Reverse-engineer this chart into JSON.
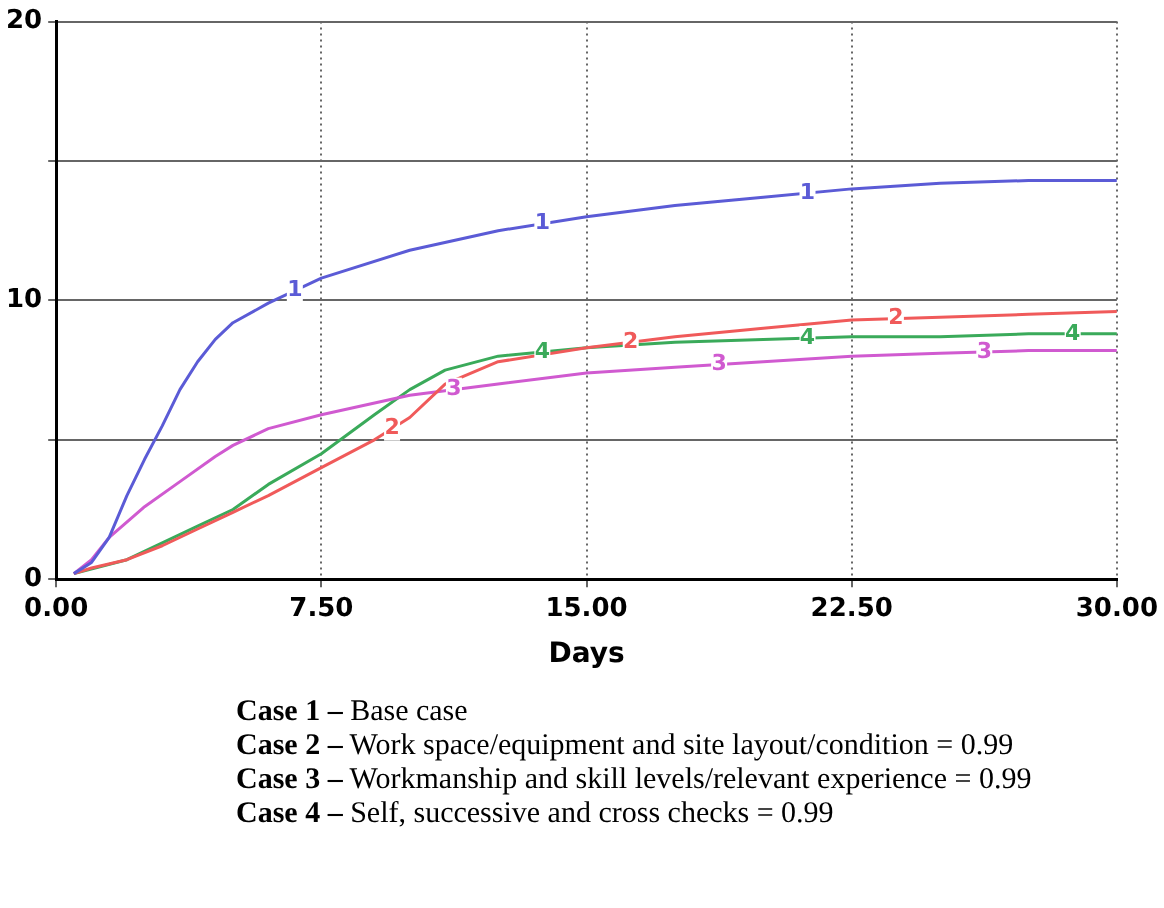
{
  "chart_data": {
    "type": "line",
    "xlabel": "Days",
    "xlim": [
      0,
      30
    ],
    "xticks": [
      {
        "value": 0,
        "label": "0.00"
      },
      {
        "value": 7.5,
        "label": "7.50"
      },
      {
        "value": 15,
        "label": "15.00"
      },
      {
        "value": 22.5,
        "label": "22.50"
      },
      {
        "value": 30,
        "label": "30.00"
      }
    ],
    "ylim": [
      0,
      20
    ],
    "yticks": [
      0,
      {
        "value": 5,
        "label": null
      },
      10,
      {
        "value": 15,
        "label": null
      },
      20
    ],
    "grid": true,
    "legend": false,
    "marker": "none",
    "line_style": "solid",
    "series": [
      {
        "name": "1",
        "color": "#5b5bd6",
        "x": [
          0.5,
          1,
          1.5,
          2,
          2.5,
          3,
          3.5,
          4,
          4.5,
          5,
          6,
          7.5,
          10,
          12.5,
          15,
          17.5,
          20,
          22.5,
          25,
          27.5,
          30
        ],
        "values": [
          0.2,
          0.6,
          1.5,
          3,
          4.3,
          5.5,
          6.8,
          7.8,
          8.6,
          9.2,
          9.9,
          10.8,
          11.8,
          12.5,
          13,
          13.4,
          13.7,
          14,
          14.2,
          14.3,
          14.3
        ]
      },
      {
        "name": "2",
        "color": "#f05a5a",
        "x": [
          0.5,
          1,
          2,
          3,
          4,
          5,
          6,
          7.5,
          9,
          10,
          11,
          12.5,
          15,
          17.5,
          20,
          22.5,
          25,
          27.5,
          30
        ],
        "values": [
          0.2,
          0.4,
          0.7,
          1.2,
          1.8,
          2.4,
          3,
          4,
          5,
          5.8,
          7,
          7.8,
          8.3,
          8.7,
          9,
          9.3,
          9.4,
          9.5,
          9.6
        ]
      },
      {
        "name": "3",
        "color": "#d05ad0",
        "x": [
          0.5,
          1,
          1.5,
          2.5,
          3.5,
          4.5,
          5,
          6,
          7.5,
          10,
          12.5,
          15,
          17.5,
          20,
          22.5,
          25,
          27.5,
          30
        ],
        "values": [
          0.2,
          0.7,
          1.5,
          2.6,
          3.5,
          4.4,
          4.8,
          5.4,
          5.9,
          6.6,
          7,
          7.4,
          7.6,
          7.8,
          8,
          8.1,
          8.2,
          8.2
        ]
      },
      {
        "name": "4",
        "color": "#3aaa5a",
        "x": [
          0.5,
          2,
          3,
          4,
          5,
          6,
          7.5,
          9,
          10,
          11,
          12.5,
          15,
          17.5,
          20,
          22.5,
          25,
          27.5,
          30
        ],
        "values": [
          0.2,
          0.7,
          1.3,
          1.9,
          2.5,
          3.4,
          4.5,
          5.9,
          6.8,
          7.5,
          8,
          8.3,
          8.5,
          8.6,
          8.7,
          8.7,
          8.8,
          8.8
        ]
      }
    ],
    "annotations": [
      "Case 1 – Base case",
      "Case 2 – Work space/equipment and site layout/condition = 0.99",
      "Case 3 – Workmanship and skill levels/relevant experience = 0.99",
      "Case 4 – Self, successive and cross checks = 0.99"
    ]
  }
}
